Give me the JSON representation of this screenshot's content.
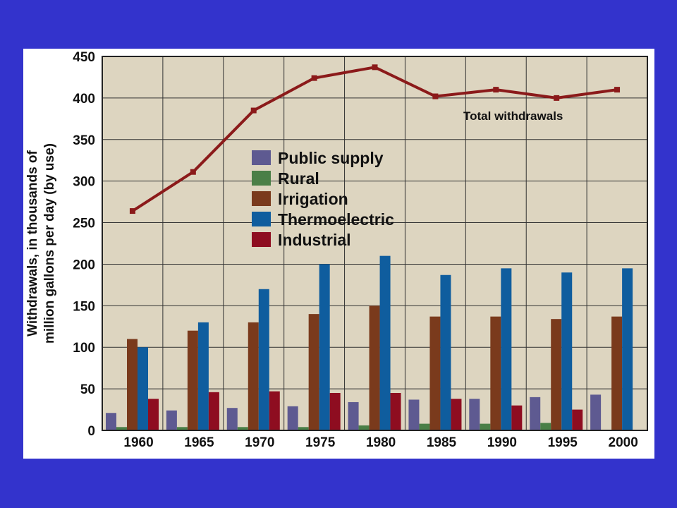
{
  "colors": {
    "slide_background": "#3333cc",
    "chart_panel": "#ffffff",
    "plot_area": "#ddd5c0",
    "grid": "#333333",
    "total_line": "#8b1a1a"
  },
  "chart_data": {
    "type": "bar",
    "title": "",
    "xlabel": "",
    "ylabel_lines": [
      "Withdrawals, in thousands of",
      "million gallons per day (by use)"
    ],
    "categories": [
      "1960",
      "1965",
      "1970",
      "1975",
      "1980",
      "1985",
      "1990",
      "1995",
      "2000"
    ],
    "ylim": [
      0,
      450
    ],
    "yticks": [
      0,
      50,
      100,
      150,
      200,
      250,
      300,
      350,
      400,
      450
    ],
    "grid": true,
    "legend_position": "upper-center",
    "series": [
      {
        "name": "Public supply",
        "color": "#5e5a91",
        "values": [
          21,
          24,
          27,
          29,
          34,
          37,
          38,
          40,
          43
        ]
      },
      {
        "name": "Rural",
        "color": "#4a7f47",
        "values": [
          4,
          4,
          4,
          4,
          6,
          8,
          8,
          9,
          null
        ]
      },
      {
        "name": "Irrigation",
        "color": "#7a3a1c",
        "values": [
          110,
          120,
          130,
          140,
          150,
          137,
          137,
          134,
          137
        ]
      },
      {
        "name": "Thermoelectric",
        "color": "#0f5d9e",
        "values": [
          100,
          130,
          170,
          200,
          210,
          187,
          195,
          190,
          195
        ]
      },
      {
        "name": "Industrial",
        "color": "#8e0d20",
        "values": [
          38,
          46,
          47,
          45,
          45,
          38,
          30,
          25,
          null
        ]
      }
    ],
    "line_series": {
      "name": "Total withdrawals",
      "label": "Total withdrawals",
      "color": "#8b1a1a",
      "values": [
        264,
        311,
        385,
        424,
        437,
        402,
        410,
        400,
        410
      ]
    }
  }
}
